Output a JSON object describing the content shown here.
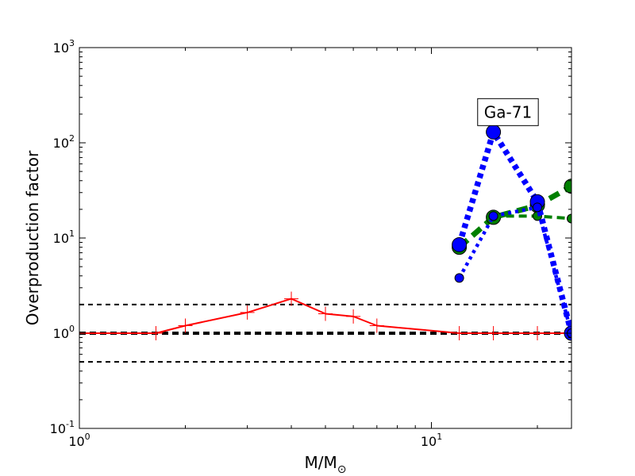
{
  "chart_data": {
    "type": "line",
    "title": "",
    "xlabel": "M/M",
    "xlabel_subscript": "⊙",
    "ylabel": "Overproduction factor",
    "x_scale": "log",
    "y_scale": "log",
    "xlim": [
      1,
      25
    ],
    "ylim": [
      0.1,
      1000
    ],
    "x_ticks": [
      {
        "base": "10",
        "exp": "0",
        "value": 1
      },
      {
        "base": "10",
        "exp": "1",
        "value": 10
      }
    ],
    "y_ticks": [
      {
        "base": "10",
        "exp": "-1",
        "value": 0.1
      },
      {
        "base": "10",
        "exp": "0",
        "value": 1
      },
      {
        "base": "10",
        "exp": "1",
        "value": 10
      },
      {
        "base": "10",
        "exp": "2",
        "value": 100
      },
      {
        "base": "10",
        "exp": "3",
        "value": 1000
      }
    ],
    "grid": false,
    "reference_lines": [
      {
        "y": 1.0,
        "style": "dashed",
        "color": "#000000",
        "weight": "thick"
      },
      {
        "y": 2.0,
        "style": "dashed",
        "color": "#000000",
        "weight": "thin"
      },
      {
        "y": 0.5,
        "style": "dashed",
        "color": "#000000",
        "weight": "thin"
      }
    ],
    "series": [
      {
        "color": "#ff0000",
        "style": "solid",
        "marker": "plus",
        "points": [
          {
            "x": 1.0,
            "y": 1.0
          },
          {
            "x": 1.65,
            "y": 1.0
          },
          {
            "x": 2.0,
            "y": 1.2
          },
          {
            "x": 3.0,
            "y": 1.65
          },
          {
            "x": 4.0,
            "y": 2.3
          },
          {
            "x": 5.0,
            "y": 1.6
          },
          {
            "x": 6.0,
            "y": 1.5
          },
          {
            "x": 7.0,
            "y": 1.2
          },
          {
            "x": 12.0,
            "y": 1.0
          },
          {
            "x": 15.0,
            "y": 1.0
          },
          {
            "x": 20.0,
            "y": 1.0
          },
          {
            "x": 25.0,
            "y": 1.0
          }
        ]
      },
      {
        "color": "#008000",
        "style": "dashed-thick",
        "marker": "circle",
        "points": [
          {
            "x": 12.0,
            "y": 8.0
          },
          {
            "x": 15.0,
            "y": 16.5
          },
          {
            "x": 20.0,
            "y": 22.0
          },
          {
            "x": 25.0,
            "y": 35.0
          }
        ]
      },
      {
        "color": "#008000",
        "style": "dashed",
        "marker": "circle-small",
        "points": [
          {
            "x": 15.0,
            "y": 17.0
          },
          {
            "x": 20.0,
            "y": 17.0
          },
          {
            "x": 25.0,
            "y": 16.0
          }
        ]
      },
      {
        "color": "#0000ff",
        "style": "dotted-thick",
        "marker": "circle",
        "points": [
          {
            "x": 12.0,
            "y": 8.5
          },
          {
            "x": 15.0,
            "y": 130.0
          },
          {
            "x": 20.0,
            "y": 24.0
          },
          {
            "x": 25.0,
            "y": 1.0
          }
        ]
      },
      {
        "color": "#0000ff",
        "style": "dotted",
        "marker": "circle-small",
        "points": [
          {
            "x": 12.0,
            "y": 3.8
          },
          {
            "x": 15.0,
            "y": 17.0
          },
          {
            "x": 20.0,
            "y": 21.0
          },
          {
            "x": 25.0,
            "y": 1.0
          }
        ]
      }
    ],
    "annotations": [
      {
        "text": "Ga-71",
        "x": 16.5,
        "y": 210
      }
    ]
  }
}
